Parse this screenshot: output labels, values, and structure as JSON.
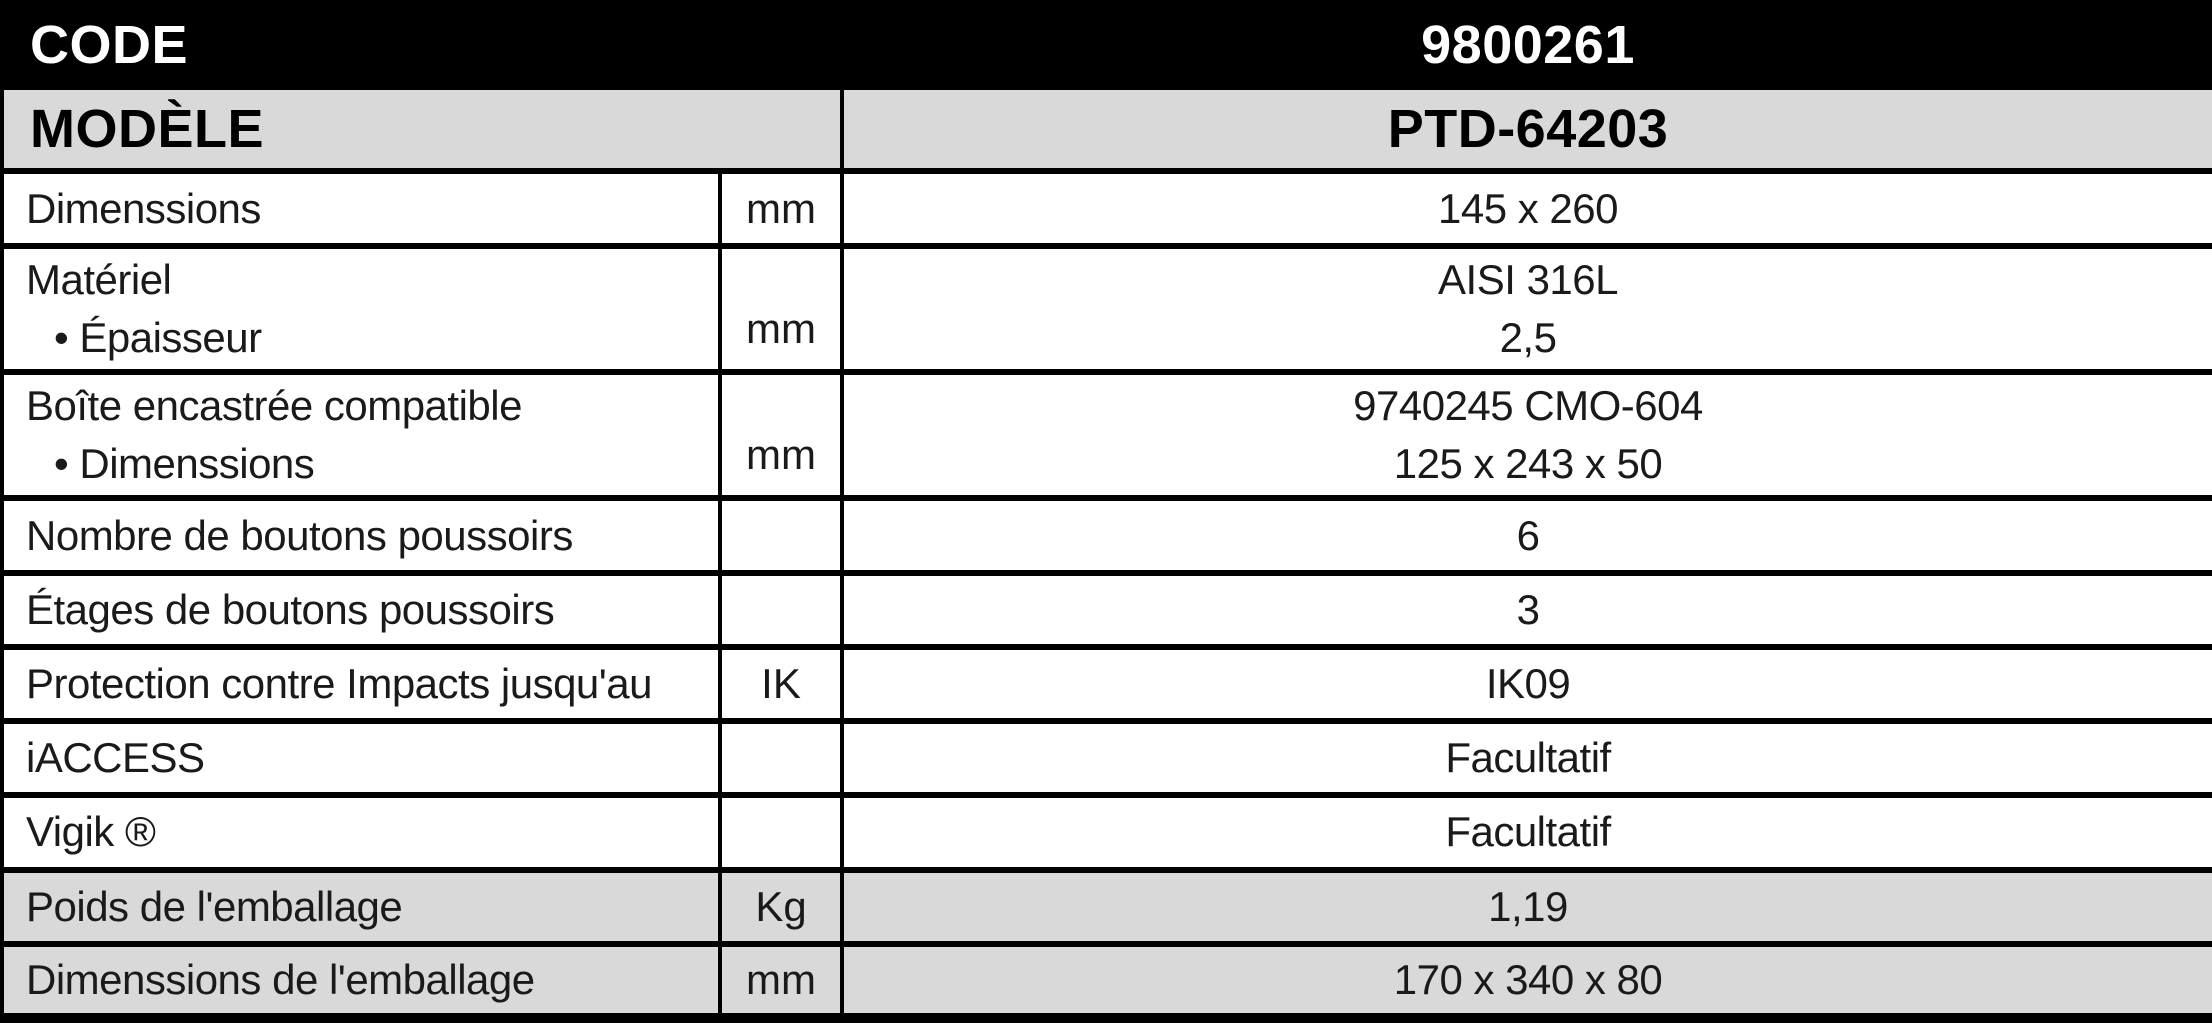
{
  "colors": {
    "header_black_bg": "#000000",
    "header_black_text": "#ffffff",
    "shaded_row_bg": "#d9d9d9",
    "row_bg": "#ffffff",
    "border": "#000000",
    "body_text": "#1a1a1a"
  },
  "header_rows": {
    "code": {
      "label": "CODE",
      "value": "9800261"
    },
    "model": {
      "label": "MODÈLE",
      "value": "PTD-64203"
    }
  },
  "rows": [
    {
      "label": "Dimenssions",
      "unit": "mm",
      "value": "145 x 260"
    },
    {
      "label": "Matériel",
      "label2": "• Épaisseur",
      "unit": "mm",
      "value": "AISI 316L",
      "value2": "2,5"
    },
    {
      "label": "Boîte encastrée compatible",
      "label2": "• Dimenssions",
      "unit": "mm",
      "value": "9740245 CMO-604",
      "value2": "125 x 243 x 50"
    },
    {
      "label": "Nombre de boutons poussoirs",
      "unit": "",
      "value": "6"
    },
    {
      "label": "Étages de boutons poussoirs",
      "unit": "",
      "value": "3"
    },
    {
      "label": "Protection contre Impacts jusqu'au",
      "unit": "IK",
      "value": "IK09"
    },
    {
      "label": "iACCESS",
      "unit": "",
      "value": "Facultatif"
    },
    {
      "label": "Vigik ®",
      "unit": "",
      "value": "Facultatif"
    },
    {
      "label": "Poids de l'emballage",
      "unit": "Kg",
      "value": "1,19"
    },
    {
      "label": "Dimenssions de l'emballage",
      "unit": "mm",
      "value": "170 x 340 x 80"
    }
  ]
}
